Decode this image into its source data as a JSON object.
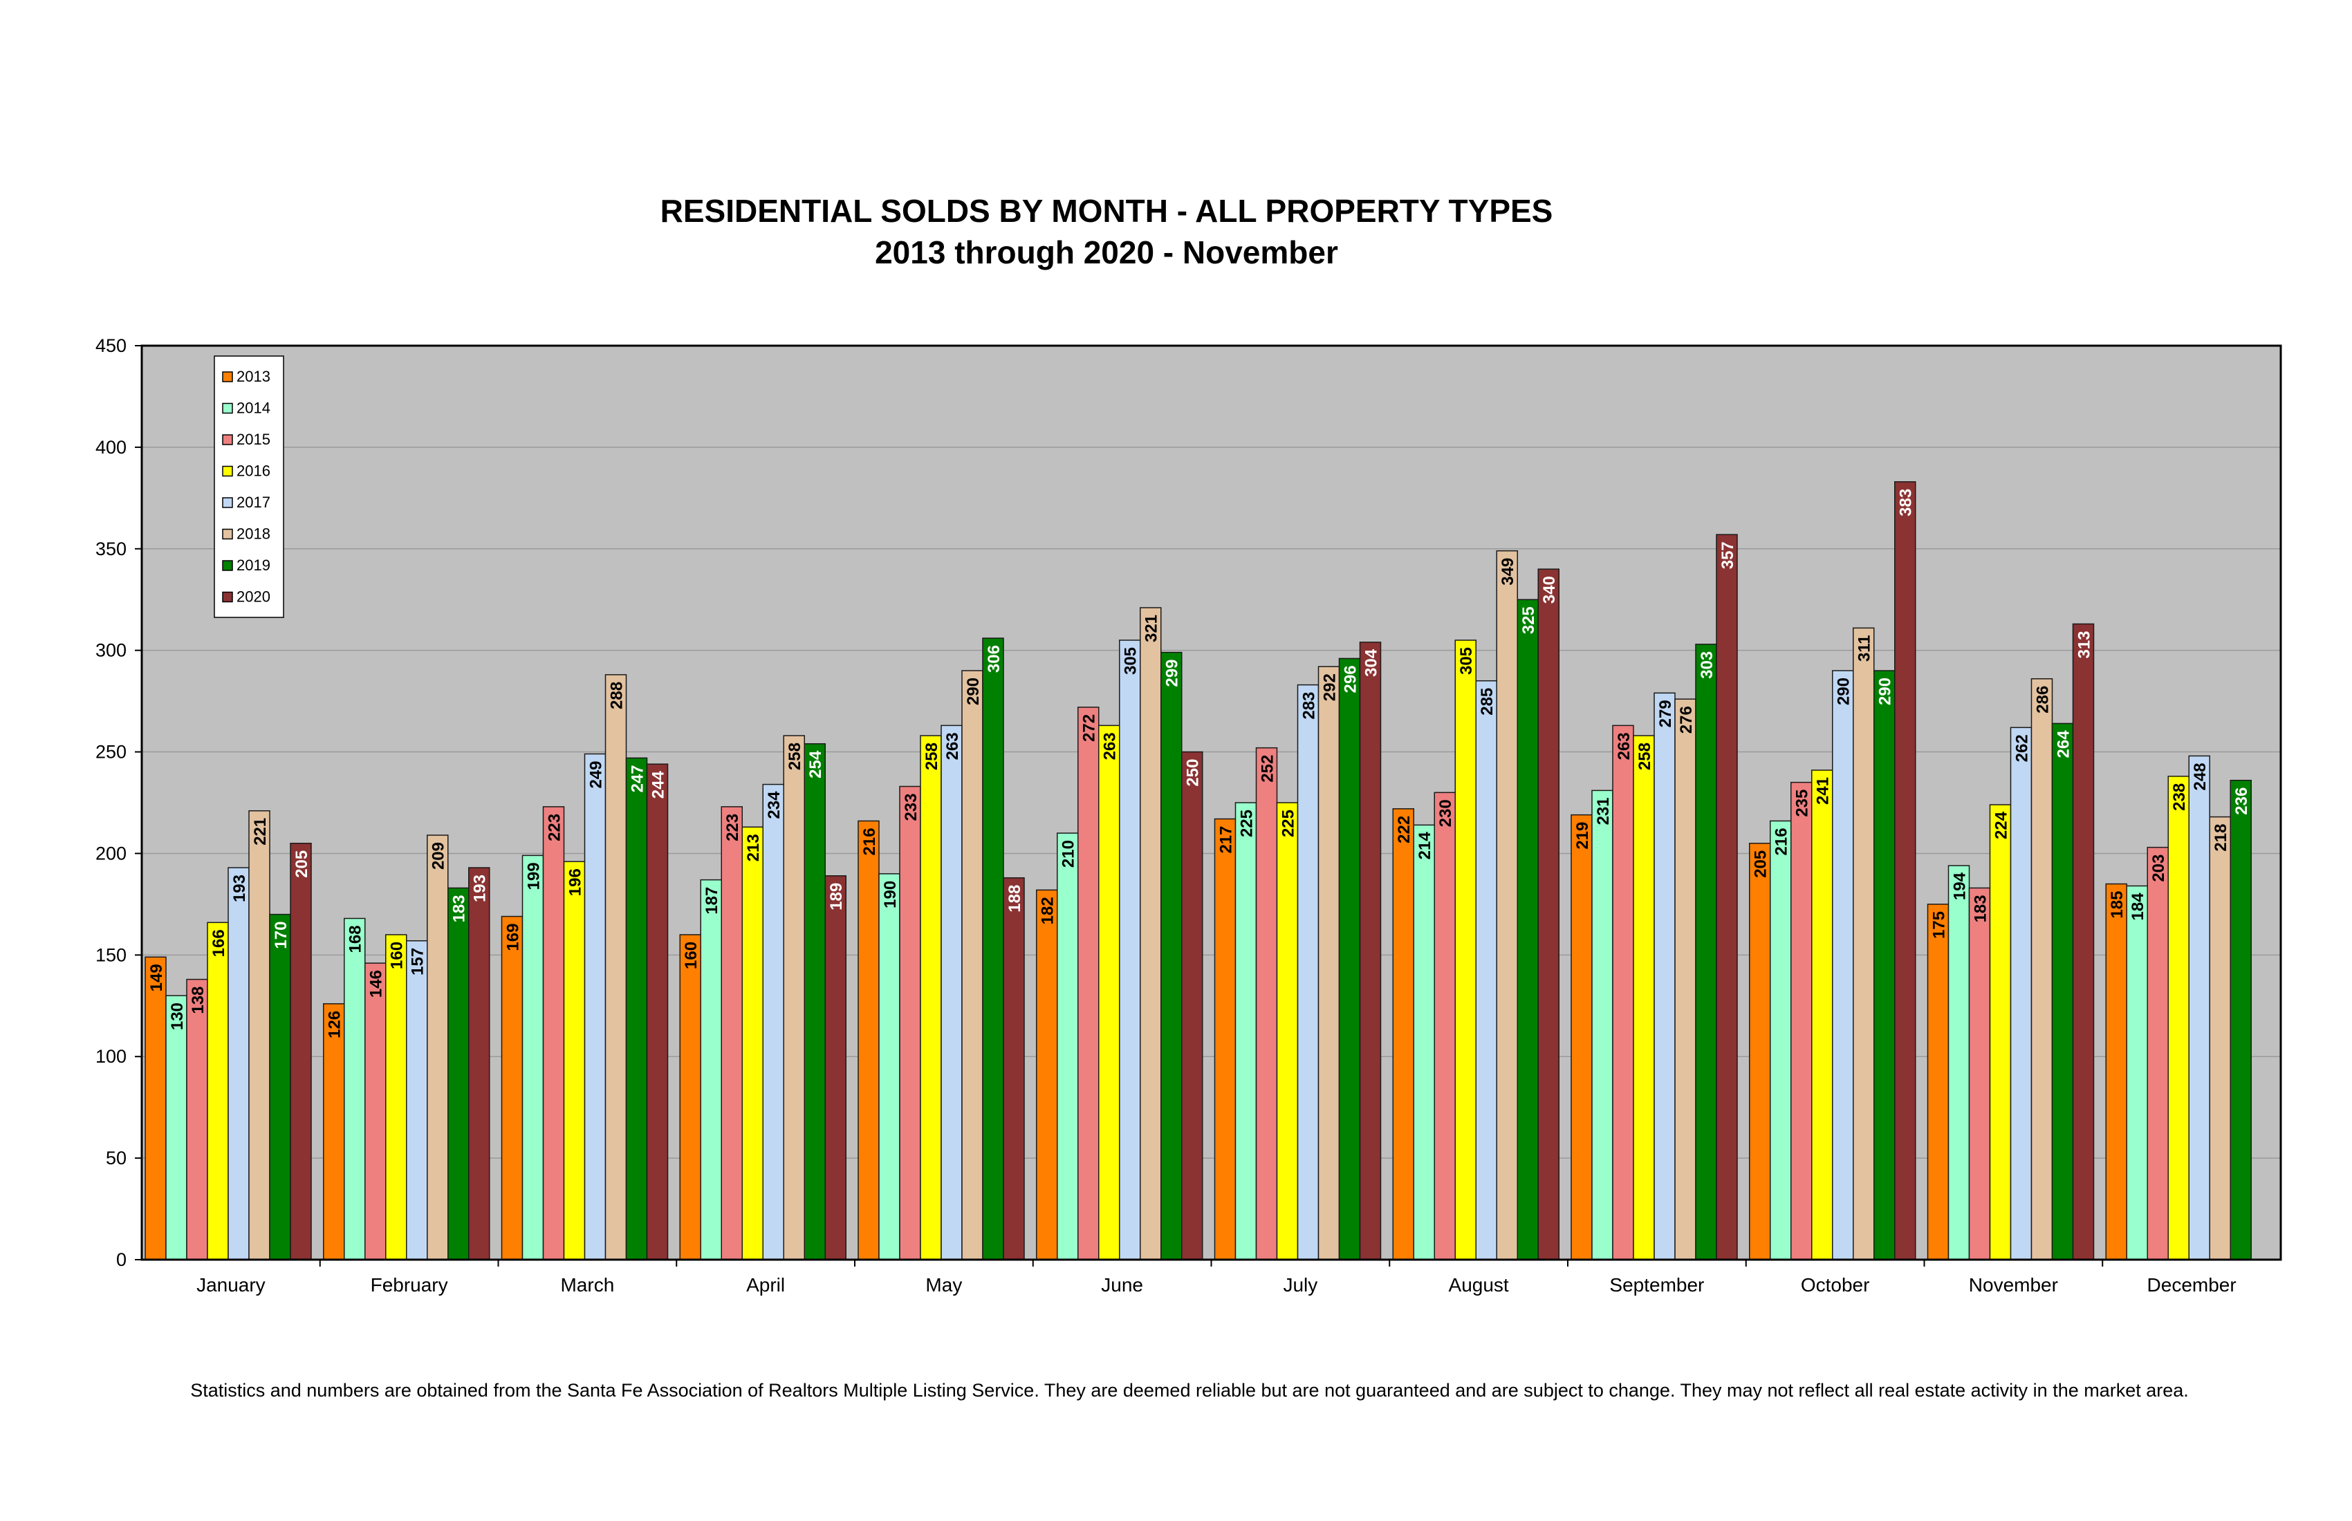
{
  "chart_data": {
    "type": "bar",
    "title": "RESIDENTIAL SOLDS BY MONTH - ALL PROPERTY TYPES",
    "subtitle": "2013 through 2020 - November",
    "xlabel": "",
    "ylabel": "",
    "ylim": [
      0,
      450
    ],
    "yticks": [
      "0",
      "50",
      "100",
      "150",
      "200",
      "250",
      "300",
      "350",
      "400",
      "450"
    ],
    "grid": true,
    "legend_position": "top-left",
    "categories": [
      "January",
      "February",
      "March",
      "April",
      "May",
      "June",
      "July",
      "August",
      "September",
      "October",
      "November",
      "December"
    ],
    "series": [
      {
        "name": "2013",
        "color": "#FF7F00",
        "label_color": "#000000",
        "values": [
          149,
          126,
          169,
          160,
          216,
          182,
          217,
          222,
          219,
          205,
          175,
          185
        ]
      },
      {
        "name": "2014",
        "color": "#99FFCC",
        "label_color": "#000000",
        "values": [
          130,
          168,
          199,
          187,
          190,
          210,
          225,
          214,
          231,
          216,
          194,
          184
        ]
      },
      {
        "name": "2015",
        "color": "#EE8080",
        "label_color": "#000000",
        "values": [
          138,
          146,
          223,
          223,
          233,
          272,
          252,
          230,
          263,
          235,
          183,
          203
        ]
      },
      {
        "name": "2016",
        "color": "#FFFF00",
        "label_color": "#000000",
        "values": [
          166,
          160,
          196,
          213,
          258,
          263,
          225,
          305,
          258,
          241,
          224,
          238
        ]
      },
      {
        "name": "2017",
        "color": "#C0D8F4",
        "label_color": "#000000",
        "values": [
          193,
          157,
          249,
          234,
          263,
          305,
          283,
          285,
          279,
          290,
          262,
          248
        ]
      },
      {
        "name": "2018",
        "color": "#E3C2A0",
        "label_color": "#000000",
        "values": [
          221,
          209,
          288,
          258,
          290,
          321,
          292,
          349,
          276,
          311,
          286,
          218
        ]
      },
      {
        "name": "2019",
        "color": "#008000",
        "label_color": "#FFFFFF",
        "values": [
          170,
          183,
          247,
          254,
          306,
          299,
          296,
          325,
          303,
          290,
          264,
          236
        ]
      },
      {
        "name": "2020",
        "color": "#8B3232",
        "label_color": "#FFFFFF",
        "values": [
          205,
          193,
          244,
          189,
          188,
          250,
          304,
          340,
          357,
          383,
          313,
          null
        ]
      }
    ]
  },
  "footnote": "Statistics and numbers are obtained from the Santa Fe Association of Realtors Multiple Listing Service. They are deemed reliable but are not guaranteed and are subject to change. They may not reflect all real estate activity in the market area."
}
